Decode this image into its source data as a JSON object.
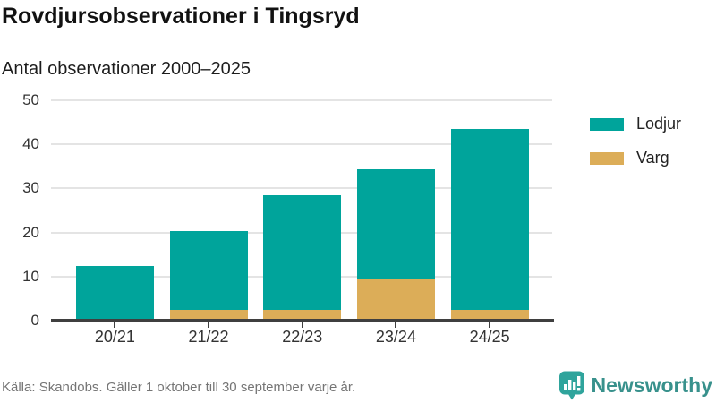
{
  "title": "Rovdjursobservationer i Tingsryd",
  "subtitle": "Antal observationer 2000–2025",
  "source": "Källa: Skandobs. Gäller 1 oktober till 30 september varje år.",
  "branding": {
    "name": "Newsworthy",
    "icon": "newsworthy-chart-bubble-icon",
    "icon_color": "#2fa49c",
    "wordmark_color": "#38918c"
  },
  "colors": {
    "lodjur": "#00a49b",
    "varg": "#dcad58",
    "gridline": "#e4e4e4",
    "axis_line": "#3f3f3f",
    "axis_text": "#333333",
    "title_text": "#121212",
    "source_text": "#757575"
  },
  "chart_data": {
    "type": "bar",
    "stacked": true,
    "title": "Rovdjursobservationer i Tingsryd",
    "subtitle": "Antal observationer 2000–2025",
    "categories": [
      "20/21",
      "21/22",
      "22/23",
      "23/24",
      "24/25"
    ],
    "series": [
      {
        "name": "Lodjur",
        "color": "#00a49b",
        "values": [
          12,
          18,
          26,
          25,
          41
        ]
      },
      {
        "name": "Varg",
        "color": "#dcad58",
        "values": [
          0,
          2,
          2,
          9,
          2
        ]
      }
    ],
    "stack_order_bottom_to_top": [
      "Varg",
      "Lodjur"
    ],
    "totals": [
      12,
      20,
      28,
      34,
      43
    ],
    "xlabel": "",
    "ylabel": "",
    "ylim": [
      0,
      50
    ],
    "yticks": [
      0,
      10,
      20,
      30,
      40,
      50
    ],
    "grid": true,
    "legend_position": "right"
  }
}
